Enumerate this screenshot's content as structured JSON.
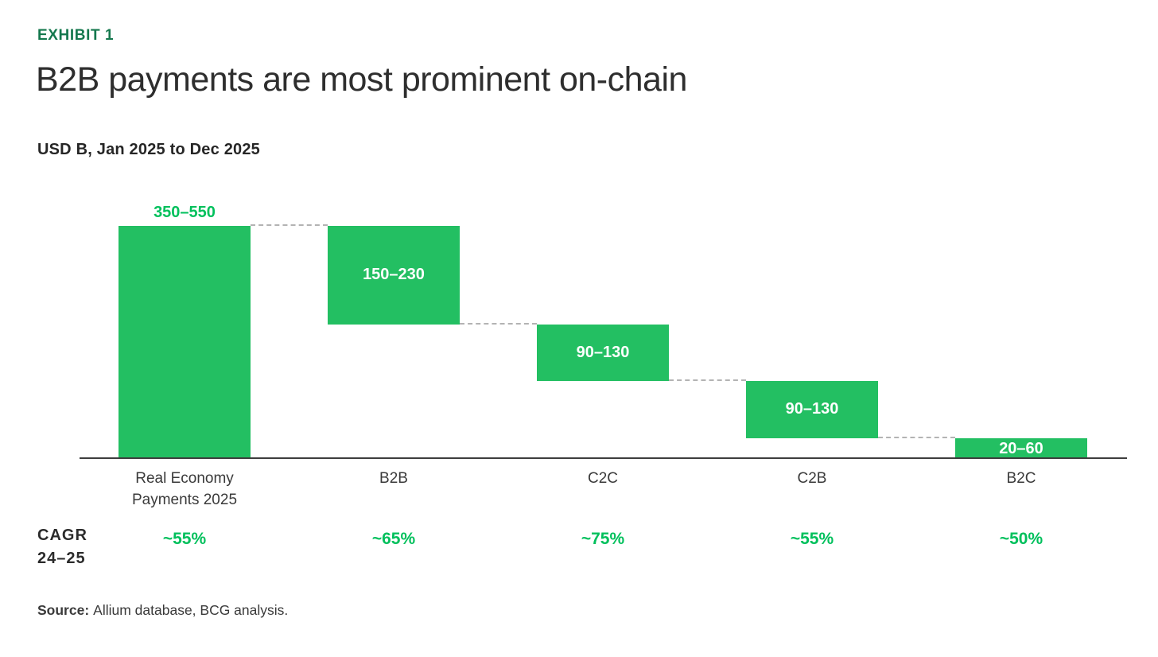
{
  "header": {
    "exhibit_label": "EXHIBIT 1",
    "title": "B2B payments are most prominent on-chain",
    "subtitle": "USD B, Jan 2025 to Dec 2025"
  },
  "cagr": {
    "label_line1": "CAGR",
    "label_line2": "24–25"
  },
  "source": {
    "label": "Source:",
    "text": "Allium database, BCG analysis."
  },
  "colors": {
    "bar_green": "#23BF62",
    "value_text_green": "#00C05C",
    "exhibit_green": "#15784E",
    "title_dark": "#2E2E2E",
    "axis_dark": "#3D3D3D",
    "connector_gray": "#B3B3B3",
    "category_label_gray": "#3A3A3A",
    "bar_inner_label_white": "#FFFFFF"
  },
  "chart_data": {
    "type": "bar",
    "subtype": "waterfall",
    "title": "B2B payments are most prominent on-chain",
    "unit_label": "USD B, Jan 2025 to Dec 2025",
    "categories": [
      "Real Economy Payments 2025",
      "B2B",
      "C2C",
      "C2B",
      "B2C"
    ],
    "value_labels": [
      "350–550",
      "150–230",
      "90–130",
      "90–130",
      "20–60"
    ],
    "values_low": [
      350,
      150,
      90,
      90,
      20
    ],
    "values_high": [
      550,
      230,
      130,
      130,
      60
    ],
    "cagr_row_label": "CAGR 24–25",
    "cagr_values": [
      "~55%",
      "~65%",
      "~75%",
      "~55%",
      "~50%"
    ],
    "legend": "none",
    "grid": "off",
    "layout_hints": {
      "first_bar_is_total": true,
      "first_bar_label_position": "above",
      "other_bar_label_position": "inside",
      "connector_style": "dashed"
    }
  }
}
